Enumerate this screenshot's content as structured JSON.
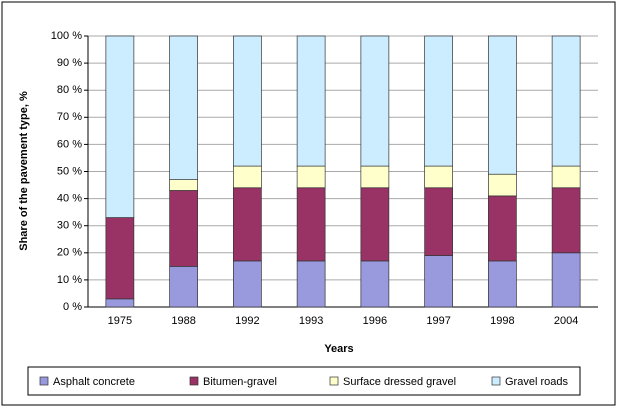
{
  "chart_data": {
    "type": "stacked_bar",
    "x_label": "Years",
    "y_label": "Share of the pavement type, %",
    "categories": [
      "1975",
      "1988",
      "1992",
      "1993",
      "1996",
      "1997",
      "1998",
      "2004"
    ],
    "series": [
      {
        "name": "Asphalt concrete",
        "color": "#9999dd",
        "values": [
          3,
          15,
          17,
          17,
          17,
          19,
          17,
          20
        ]
      },
      {
        "name": "Bitumen-gravel",
        "color": "#993366",
        "values": [
          30,
          28,
          27,
          27,
          27,
          25,
          24,
          24
        ]
      },
      {
        "name": "Surface dressed gravel",
        "color": "#ffffcc",
        "values": [
          0,
          4,
          8,
          8,
          8,
          8,
          8,
          8
        ]
      },
      {
        "name": "Gravel roads",
        "color": "#ccecff",
        "values": [
          67,
          53,
          48,
          48,
          48,
          48,
          51,
          48
        ]
      }
    ],
    "ylim": [
      0,
      100
    ],
    "yticks": [
      {
        "value": 0,
        "label": "0 %"
      },
      {
        "value": 10,
        "label": "10 %"
      },
      {
        "value": 20,
        "label": "20 %"
      },
      {
        "value": 30,
        "label": "30 %"
      },
      {
        "value": 40,
        "label": "40 %"
      },
      {
        "value": 50,
        "label": "50 %"
      },
      {
        "value": 60,
        "label": "60 %"
      },
      {
        "value": 70,
        "label": "70 %"
      },
      {
        "value": 80,
        "label": "80 %"
      },
      {
        "value": 90,
        "label": "90 %"
      },
      {
        "value": 100,
        "label": "100 %"
      }
    ],
    "grid": true,
    "legend": "bottom"
  }
}
